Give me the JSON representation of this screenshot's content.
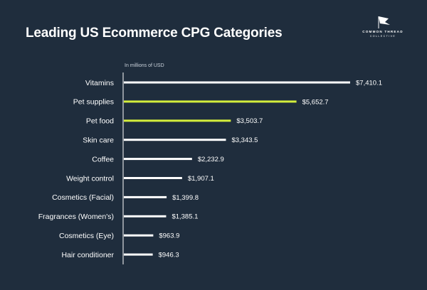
{
  "title": "Leading US Ecommerce CPG Categories",
  "logo": {
    "brand": "COMMON THREAD",
    "sub": "COLLECTIVE",
    "icon": "flag-icon"
  },
  "colors": {
    "background": "#1f2d3d",
    "bar_default": "#ffffff",
    "bar_highlight": "#d4ee3c",
    "axis": "#ffffff"
  },
  "chart_data": {
    "type": "bar",
    "orientation": "horizontal",
    "title": "Leading US Ecommerce CPG Categories",
    "unit_note": "In millions of USD",
    "categories": [
      "Vitamins",
      "Pet supplies",
      "Pet food",
      "Skin care",
      "Coffee",
      "Weight control",
      "Cosmetics (Facial)",
      "Fragrances (Women's)",
      "Cosmetics (Eye)",
      "Hair conditioner"
    ],
    "values": [
      7410.1,
      5652.7,
      3503.7,
      3343.5,
      2232.9,
      1907.1,
      1399.8,
      1385.1,
      963.9,
      946.3
    ],
    "value_labels": [
      "$7,410.1",
      "$5,652.7",
      "$3,503.7",
      "$3,343.5",
      "$2,232.9",
      "$1,907.1",
      "$1,399.8",
      "$1,385.1",
      "$963.9",
      "$946.3"
    ],
    "highlighted": [
      "Pet supplies",
      "Pet food"
    ],
    "xlim": [
      0,
      7410.1
    ],
    "grid": false,
    "legend": "none"
  }
}
